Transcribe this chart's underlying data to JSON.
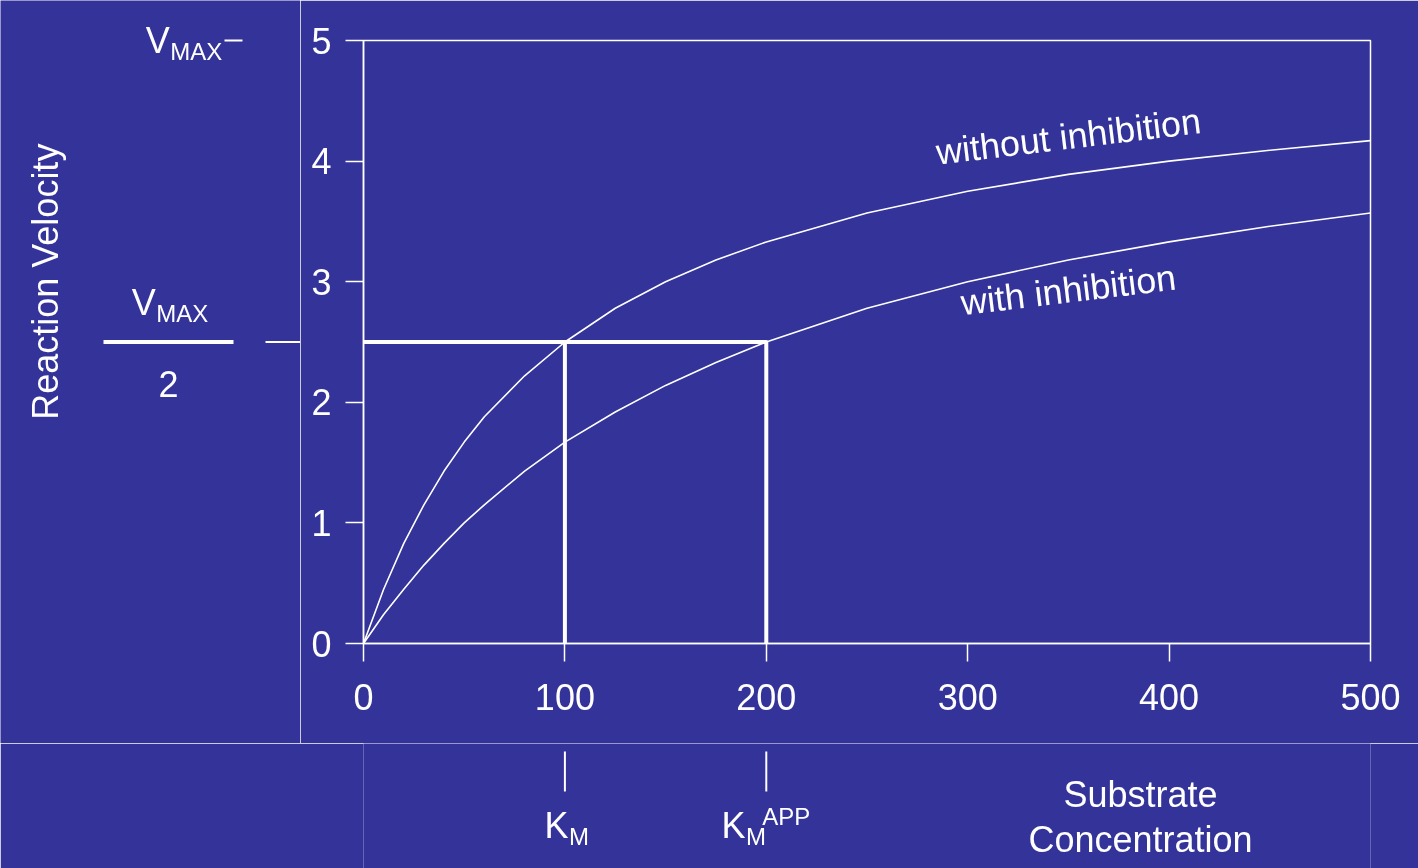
{
  "chart_data": {
    "type": "line",
    "xlabel": "Substrate Concentration",
    "x": [
      0,
      10,
      20,
      30,
      40,
      50,
      60,
      80,
      100,
      125,
      150,
      175,
      200,
      250,
      300,
      350,
      400,
      450,
      500
    ],
    "series": [
      {
        "name": "without inhibition",
        "color": "#ffffff",
        "values": [
          0,
          0.45,
          0.83,
          1.15,
          1.43,
          1.67,
          1.88,
          2.22,
          2.5,
          2.78,
          3.0,
          3.18,
          3.33,
          3.57,
          3.75,
          3.89,
          4.0,
          4.09,
          4.17
        ]
      },
      {
        "name": "with inhibition",
        "color": "#ffffff",
        "values": [
          0,
          0.24,
          0.45,
          0.65,
          0.83,
          1.0,
          1.15,
          1.43,
          1.67,
          1.92,
          2.14,
          2.33,
          2.5,
          2.78,
          3.0,
          3.18,
          3.33,
          3.46,
          3.57
        ]
      },
      {
        "color": "#ffffff",
        "x": [
          0,
          200,
          200
        ],
        "values": [
          2.5,
          2.5,
          0
        ]
      },
      {
        "color": "#ffffff",
        "x": [
          100,
          100
        ],
        "values": [
          2.5,
          0
        ]
      }
    ],
    "xlim": [
      0,
      500
    ],
    "ylim": [
      0,
      5
    ],
    "xticks": [
      0,
      100,
      200,
      300,
      400,
      500
    ],
    "yticks": [
      0,
      1,
      2,
      3,
      4,
      5
    ],
    "annotations": [
      "V$_{MAX}$",
      "V$_{MAX}$",
      "2",
      "K$_{M}$",
      "K$_{M}$$^{APP}$",
      "Reaction Velocity"
    ],
    "grid": false,
    "legend": false,
    "marker": "none",
    "line_style": "solid"
  }
}
